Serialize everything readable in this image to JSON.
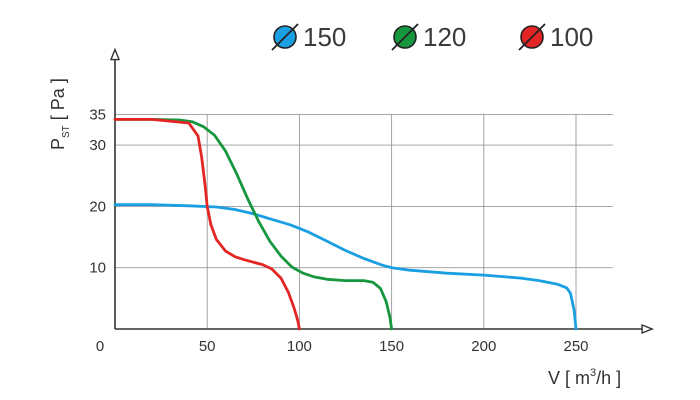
{
  "chart_data": {
    "type": "line",
    "title": "",
    "xlabel": {
      "base": "V [ m",
      "sup": "3",
      "rest": "/h ]"
    },
    "ylabel": {
      "base": "P",
      "sub": "ST",
      "rest": " [ Pa ]"
    },
    "xlim": [
      0,
      275
    ],
    "ylim": [
      0,
      42
    ],
    "x_ticks": [
      0,
      50,
      100,
      150,
      200,
      250
    ],
    "y_ticks": [
      10,
      20,
      30,
      35
    ],
    "grid": true,
    "legend_position": "top-right",
    "series": [
      {
        "name": "150",
        "color": "#1a9fe3",
        "x": [
          0,
          20,
          40,
          55,
          65,
          75,
          85,
          95,
          105,
          115,
          125,
          135,
          145,
          150,
          160,
          180,
          200,
          220,
          230,
          240,
          245,
          247,
          249,
          250
        ],
        "y": [
          20.3,
          20.3,
          20.1,
          19.9,
          19.5,
          18.8,
          17.9,
          17.0,
          15.8,
          14.3,
          12.8,
          11.5,
          10.4,
          10.0,
          9.6,
          9.1,
          8.8,
          8.3,
          7.9,
          7.3,
          6.7,
          5.8,
          3.0,
          0
        ]
      },
      {
        "name": "120",
        "color": "#16973e",
        "x": [
          0,
          20,
          35,
          42,
          48,
          54,
          60,
          66,
          72,
          78,
          84,
          90,
          96,
          102,
          108,
          115,
          125,
          135,
          140,
          144,
          147,
          149,
          150
        ],
        "y": [
          34.2,
          34.2,
          34.1,
          33.8,
          33.0,
          31.6,
          29.0,
          25.3,
          21.2,
          17.5,
          14.3,
          11.9,
          10.1,
          9.1,
          8.5,
          8.1,
          7.9,
          7.9,
          7.6,
          6.6,
          4.5,
          2.0,
          0
        ]
      },
      {
        "name": "100",
        "color": "#e32525",
        "x": [
          0,
          20,
          40,
          45,
          47,
          49,
          50,
          52,
          55,
          60,
          65,
          70,
          75,
          80,
          85,
          90,
          94,
          97,
          99,
          100
        ],
        "y": [
          34.2,
          34.2,
          33.6,
          31.5,
          28.0,
          23.0,
          20.0,
          17.0,
          14.6,
          12.7,
          11.8,
          11.3,
          10.9,
          10.5,
          9.8,
          8.3,
          6.0,
          3.5,
          1.5,
          0
        ]
      }
    ]
  }
}
